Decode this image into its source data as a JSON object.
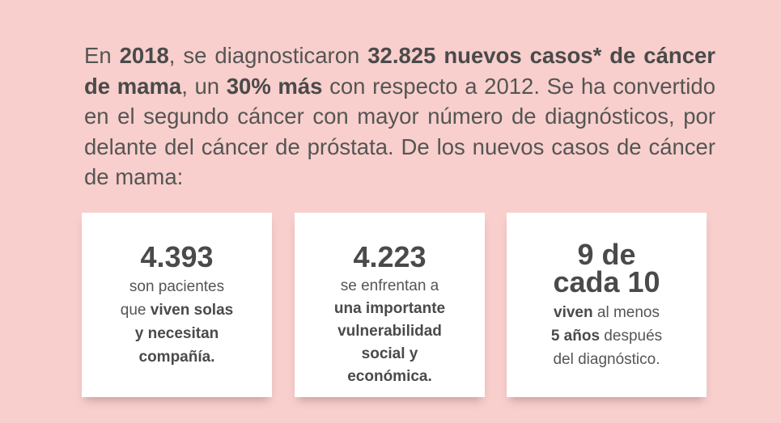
{
  "intro": {
    "p1": "En ",
    "year": "2018",
    "p2": ", se diagnosticaron ",
    "cases": "32.825 nuevos casos* de cáncer de mama",
    "p3": ", un ",
    "pct": "30% más",
    "p4": " con respecto a 2012. Se ha convertido en el segundo cáncer con mayor número de diagnósticos, por delante del cáncer de próstata. De los nuevos casos de cáncer de mama:"
  },
  "cards": [
    {
      "value": "4.393",
      "line1": "son pacientes",
      "line2_a": "que ",
      "line2_b": "viven solas",
      "line3": "y necesitan",
      "line4": "compañía."
    },
    {
      "value": "4.223",
      "line1": "se enfrentan a",
      "line2": "una importante",
      "line3": "vulnerabilidad",
      "line4": "social y",
      "line5": "económica."
    },
    {
      "value_l1": "9 de",
      "value_l2": "cada 10",
      "line1_a": "viven",
      "line1_b": " al menos",
      "line2_a": "5 años",
      "line2_b": " después",
      "line3": "del diagnóstico."
    }
  ]
}
